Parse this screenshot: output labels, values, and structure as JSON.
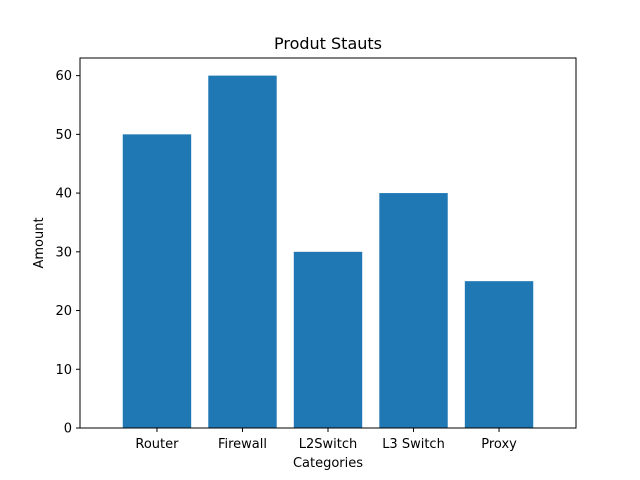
{
  "chart_data": {
    "type": "bar",
    "title": "Produt Stauts",
    "xlabel": "Categories",
    "ylabel": "Amount",
    "categories": [
      "Router",
      "Firewall",
      "L2Switch",
      "L3 Switch",
      "Proxy"
    ],
    "values": [
      50,
      60,
      30,
      40,
      25
    ],
    "ylim": [
      0,
      63
    ],
    "yticks": [
      0,
      10,
      20,
      30,
      40,
      50,
      60
    ],
    "bar_color": "#1f77b4",
    "grid": false,
    "legend": "none"
  }
}
